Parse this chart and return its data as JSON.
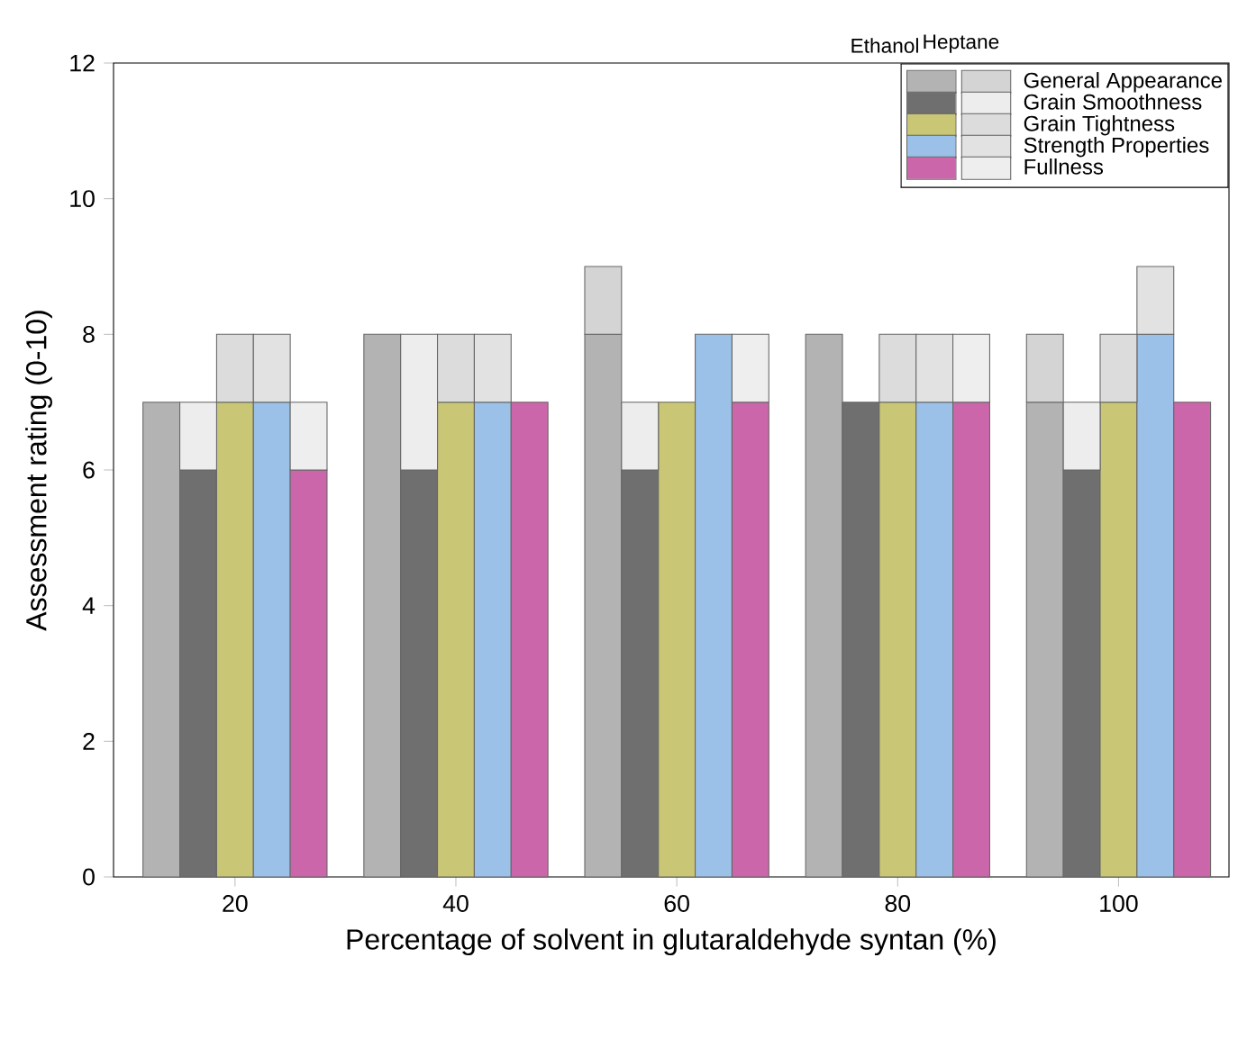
{
  "chart_data": {
    "type": "bar",
    "stacked": true,
    "xlabel": "Percentage of solvent in glutaraldehyde syntan (%)",
    "ylabel": "Assessment rating (0-10)",
    "categories": [
      null,
      null,
      "20",
      null,
      null,
      null,
      null,
      null,
      "40",
      null,
      null,
      null,
      null,
      null,
      "60",
      null,
      null,
      null,
      null,
      null,
      "80",
      null,
      null,
      null,
      null,
      null,
      "100",
      null,
      null
    ],
    "ylim": [
      0,
      12
    ],
    "yticks": [
      0,
      2,
      4,
      6,
      8,
      10,
      12
    ],
    "annotations": [
      "Ethanol",
      "Heptane",
      "General Appearance",
      "Grain Smoothness",
      "Grain Tightness",
      "Strength Properties",
      "Fullness"
    ],
    "series": [
      {
        "colors": [
          "#b3b3b3",
          "#6f6f6f",
          "#c9c775",
          "#9cc1e8",
          "#cc66aa",
          "#ffffff",
          "#b3b3b3",
          "#6f6f6f",
          "#c9c775",
          "#9cc1e8",
          "#cc66aa",
          "#ffffff",
          "#b3b3b3",
          "#6f6f6f",
          "#c9c775",
          "#9cc1e8",
          "#cc66aa",
          "#ffffff",
          "#b3b3b3",
          "#6f6f6f",
          "#c9c775",
          "#9cc1e8",
          "#cc66aa",
          "#ffffff",
          "#b3b3b3",
          "#6f6f6f",
          "#c9c775",
          "#9cc1e8",
          "#cc66aa"
        ],
        "values": [
          7,
          6,
          7,
          7,
          6,
          null,
          8,
          6,
          7,
          7,
          7,
          null,
          8,
          6,
          7,
          8,
          7,
          null,
          8,
          7,
          7,
          7,
          7,
          null,
          7,
          6,
          7,
          8,
          7
        ]
      },
      {
        "colors": [
          "#d4d4d4",
          "#ededed",
          "#dcdcdc",
          "#e2e2e2",
          "#eeeeee",
          "#ffffff",
          "#d4d4d4",
          "#ededed",
          "#dcdcdc",
          "#e2e2e2",
          "#eeeeee",
          "#ffffff",
          "#d4d4d4",
          "#ededed",
          "#dcdcdc",
          "#e2e2e2",
          "#eeeeee",
          "#ffffff",
          "#d4d4d4",
          "#ededed",
          "#dcdcdc",
          "#e2e2e2",
          "#eeeeee",
          "#ffffff",
          "#d4d4d4",
          "#ededed",
          "#dcdcdc",
          "#e2e2e2",
          "#eeeeee"
        ],
        "values": [
          0,
          1,
          1,
          1,
          1,
          null,
          0,
          2,
          1,
          1,
          0,
          null,
          1,
          1,
          0,
          0,
          1,
          null,
          0,
          0,
          1,
          1,
          1,
          null,
          1,
          1,
          1,
          1,
          0
        ]
      }
    ]
  }
}
